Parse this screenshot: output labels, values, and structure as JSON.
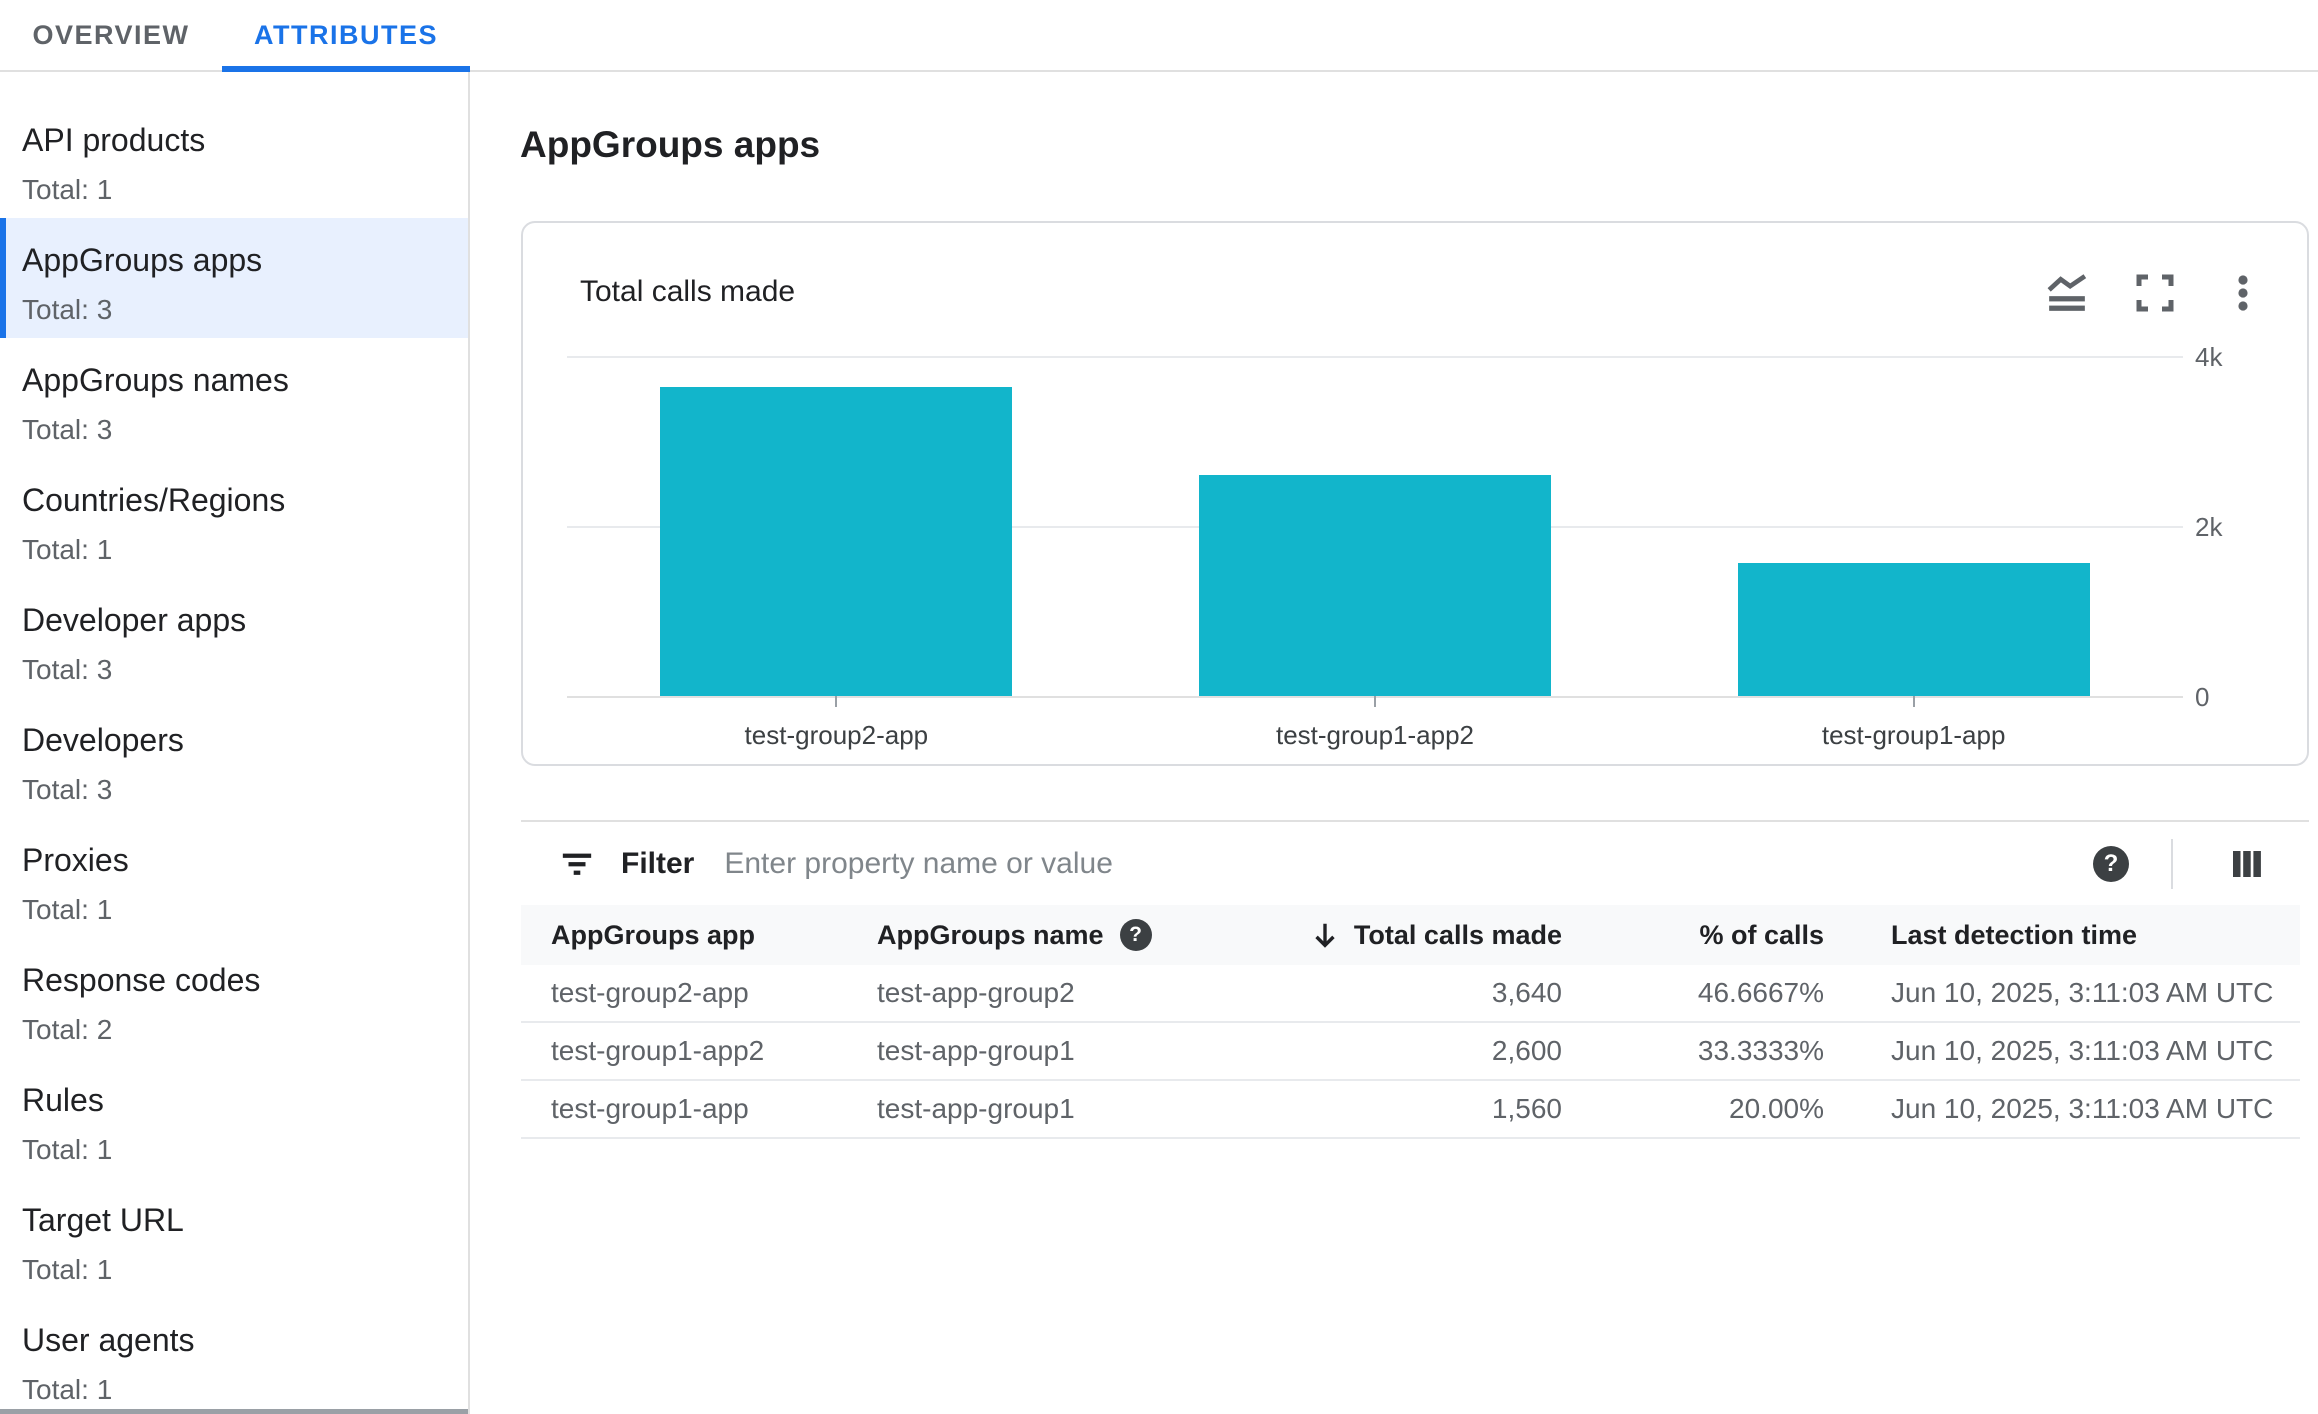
{
  "tabs": {
    "overview": "OVERVIEW",
    "attributes": "ATTRIBUTES"
  },
  "sidebar": {
    "items": [
      {
        "label": "API products",
        "total": "Total: 1"
      },
      {
        "label": "AppGroups apps",
        "total": "Total: 3"
      },
      {
        "label": "AppGroups names",
        "total": "Total: 3"
      },
      {
        "label": "Countries/Regions",
        "total": "Total: 1"
      },
      {
        "label": "Developer apps",
        "total": "Total: 3"
      },
      {
        "label": "Developers",
        "total": "Total: 3"
      },
      {
        "label": "Proxies",
        "total": "Total: 1"
      },
      {
        "label": "Response codes",
        "total": "Total: 2"
      },
      {
        "label": "Rules",
        "total": "Total: 1"
      },
      {
        "label": "Target URL",
        "total": "Total: 1"
      },
      {
        "label": "User agents",
        "total": "Total: 1"
      }
    ],
    "selected_index": 1
  },
  "main": {
    "page_title": "AppGroups apps",
    "card": {
      "title": "Total calls made"
    },
    "filter": {
      "label": "Filter",
      "placeholder": "Enter property name or value",
      "help_glyph": "?"
    },
    "table": {
      "columns": {
        "app": "AppGroups app",
        "name": "AppGroups name",
        "name_help_glyph": "?",
        "calls": "Total calls made",
        "pct": "% of calls",
        "time": "Last detection time"
      },
      "rows": [
        {
          "app": "test-group2-app",
          "name": "test-app-group2",
          "calls": "3,640",
          "pct": "46.6667%",
          "time": "Jun 10, 2025, 3:11:03 AM UTC"
        },
        {
          "app": "test-group1-app2",
          "name": "test-app-group1",
          "calls": "2,600",
          "pct": "33.3333%",
          "time": "Jun 10, 2025, 3:11:03 AM UTC"
        },
        {
          "app": "test-group1-app",
          "name": "test-app-group1",
          "calls": "1,560",
          "pct": "20.00%",
          "time": "Jun 10, 2025, 3:11:03 AM UTC"
        }
      ]
    }
  },
  "chart_data": {
    "type": "bar",
    "title": "Total calls made",
    "categories": [
      "test-group2-app",
      "test-group1-app2",
      "test-group1-app"
    ],
    "values": [
      3640,
      2600,
      1560
    ],
    "xlabel": "",
    "ylabel": "",
    "ylim": [
      0,
      4000
    ],
    "y_ticks": [
      {
        "label": "4k",
        "value": 4000
      },
      {
        "label": "2k",
        "value": 2000
      },
      {
        "label": "0",
        "value": 0
      }
    ],
    "grid": "horizontal",
    "legend": "none",
    "bar_color": "#12B5CB"
  },
  "colors": {
    "accent": "#1A73E8",
    "selected_bg": "#E8F0FE",
    "bar": "#12B5CB"
  }
}
